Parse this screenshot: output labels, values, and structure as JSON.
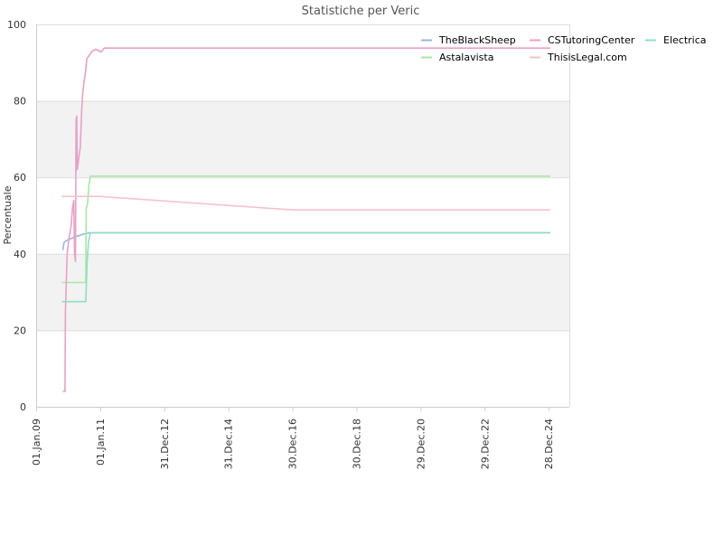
{
  "chart_data": {
    "type": "line",
    "title": "Statistiche per Veric",
    "xlabel": "",
    "ylabel": "Percentuale",
    "x_type": "date",
    "xlim": [
      "2009-01-01",
      "2025-08-20"
    ],
    "ylim": [
      0,
      100
    ],
    "y_ticks": [
      0,
      20,
      40,
      60,
      80,
      100
    ],
    "x_ticks": [
      {
        "date": "2009-01-01",
        "label": "01.Jan.09"
      },
      {
        "date": "2011-01-01",
        "label": "01.Jan.11"
      },
      {
        "date": "2012-12-31",
        "label": "31.Dec.12"
      },
      {
        "date": "2014-12-31",
        "label": "31.Dec.14"
      },
      {
        "date": "2016-12-30",
        "label": "30.Dec.16"
      },
      {
        "date": "2018-12-30",
        "label": "30.Dec.18"
      },
      {
        "date": "2020-12-29",
        "label": "29.Dec.20"
      },
      {
        "date": "2022-12-29",
        "label": "29.Dec.22"
      },
      {
        "date": "2024-12-28",
        "label": "28.Dec.24"
      }
    ],
    "grid": "horizontal alternating bands",
    "legend_position": "top-right",
    "background_bands": [
      {
        "from": 20,
        "to": 40,
        "color": "#f2f2f2"
      },
      {
        "from": 60,
        "to": 80,
        "color": "#f2f2f2"
      }
    ],
    "series": [
      {
        "name": "TheBlackSheep",
        "color": "#9ab4e0",
        "points": [
          [
            "2009-11-01",
            41
          ],
          [
            "2009-11-15",
            43
          ],
          [
            "2009-12-15",
            43.5
          ],
          [
            "2010-02-01",
            44
          ],
          [
            "2010-04-01",
            44.5
          ],
          [
            "2010-06-01",
            45
          ],
          [
            "2010-09-01",
            45.5
          ],
          [
            "2025-01-15",
            45.5
          ]
        ]
      },
      {
        "name": "Astalavista",
        "color": "#a6e8a6",
        "points": [
          [
            "2009-10-20",
            32.5
          ],
          [
            "2010-07-20",
            32.5
          ],
          [
            "2010-07-25",
            52
          ],
          [
            "2010-08-10",
            53
          ],
          [
            "2010-08-25",
            58
          ],
          [
            "2010-09-10",
            60.3
          ],
          [
            "2025-01-15",
            60.3
          ]
        ]
      },
      {
        "name": "CSTutoringCenter",
        "color": "#e8a0c8",
        "points": [
          [
            "2009-11-01",
            4
          ],
          [
            "2009-11-25",
            4
          ],
          [
            "2009-12-01",
            25
          ],
          [
            "2009-12-20",
            40
          ],
          [
            "2010-01-10",
            44
          ],
          [
            "2010-02-01",
            47
          ],
          [
            "2010-02-20",
            52
          ],
          [
            "2010-03-05",
            54
          ],
          [
            "2010-03-15",
            40
          ],
          [
            "2010-03-25",
            38
          ],
          [
            "2010-04-01",
            75
          ],
          [
            "2010-04-08",
            76
          ],
          [
            "2010-04-15",
            62
          ],
          [
            "2010-05-01",
            65
          ],
          [
            "2010-05-20",
            68
          ],
          [
            "2010-06-05",
            78
          ],
          [
            "2010-06-15",
            82
          ],
          [
            "2010-07-01",
            85
          ],
          [
            "2010-07-20",
            88
          ],
          [
            "2010-08-01",
            91
          ],
          [
            "2010-09-01",
            92
          ],
          [
            "2010-10-01",
            93
          ],
          [
            "2010-11-15",
            93.5
          ],
          [
            "2011-01-10",
            92.8
          ],
          [
            "2011-02-15",
            93.8
          ],
          [
            "2025-01-15",
            93.8
          ]
        ]
      },
      {
        "name": "ThisisLegal.com",
        "color": "#f5c3c9",
        "points": [
          [
            "2009-10-20",
            55
          ],
          [
            "2011-01-01",
            55
          ],
          [
            "2016-12-31",
            51.5
          ],
          [
            "2025-01-15",
            51.5
          ]
        ]
      },
      {
        "name": "Electrica",
        "color": "#8de0c0",
        "points": [
          [
            "2009-10-20",
            27.5
          ],
          [
            "2010-07-20",
            27.5
          ],
          [
            "2010-07-25",
            31
          ],
          [
            "2010-08-05",
            38
          ],
          [
            "2010-08-20",
            43
          ],
          [
            "2010-09-10",
            45.5
          ],
          [
            "2025-01-15",
            45.5
          ]
        ]
      }
    ],
    "legend_entries": [
      "TheBlackSheep",
      "CSTutoringCenter",
      "Electrica",
      "Astalavista",
      "ThisisLegal.com"
    ]
  }
}
